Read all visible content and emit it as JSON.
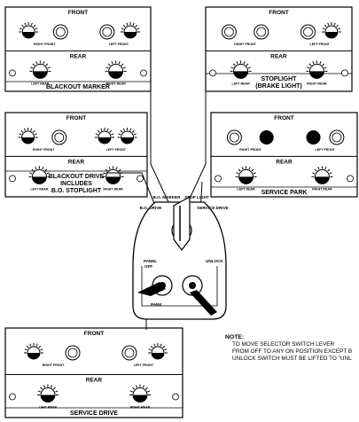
{
  "panels": [
    {
      "caption": [
        "BLACKOUT MARKER"
      ],
      "front_label": "FRONT",
      "rear_label": "REAR",
      "front_lights": [
        "RIGHT FRONT",
        "LEFT FRONT"
      ],
      "rear_lights": [
        "LEFT REAR",
        "RIGHT REAR"
      ]
    },
    {
      "caption": [
        "STOPLIGHT",
        "(BRAKE LIGHT)"
      ],
      "front_label": "FRONT",
      "rear_label": "REAR",
      "front_lights": [
        "RIGHT FRONT",
        "LEFT FRONT"
      ],
      "rear_lights": [
        "LEFT REAR",
        "RIGHT REAR"
      ]
    },
    {
      "caption": [
        "BLACKOUT DRIVE",
        "INCLUDES",
        "B.O. STOPLIGHT"
      ],
      "front_label": "FRONT",
      "rear_label": "REAR",
      "front_lights": [
        "RIGHT FRONT",
        "LEFT FRONT"
      ],
      "rear_lights": [
        "LEFT REAR",
        "RIGHT REAR"
      ]
    },
    {
      "caption": [
        "SERVICE PARK"
      ],
      "front_label": "FRONT",
      "rear_label": "REAR",
      "front_lights": [
        "RIGHT FRONT",
        "LEFT FRONT"
      ],
      "rear_lights": [
        "LEFT REAR",
        "RIGHT REAR"
      ]
    },
    {
      "caption": [
        "SERVICE DRIVE"
      ],
      "front_label": "FRONT",
      "rear_label": "REAR",
      "front_lights": [
        "RIGHT FRONT",
        "LEFT FRONT"
      ],
      "rear_lights": [
        "LEFT REAR",
        "RIGHT REAR"
      ]
    }
  ],
  "switch": {
    "positions": [
      "B.O. DRIVE",
      "B.O. MARKER",
      "STOP LIGHT",
      "SERVICE DRIVE"
    ],
    "panel_label": "PANEL",
    "off_label": "OFF",
    "park_label": "PARK",
    "unlock_label": "UNLOCK"
  },
  "note": {
    "heading": "NOTE:",
    "lines": [
      "TO MOVE SELECTOR SWITCH LEVER",
      "FROM OFF TO ANY ON POSITION EXCEPT B",
      "UNLOCK SWITCH MUST BE LIFTED TO \"UNL"
    ]
  }
}
